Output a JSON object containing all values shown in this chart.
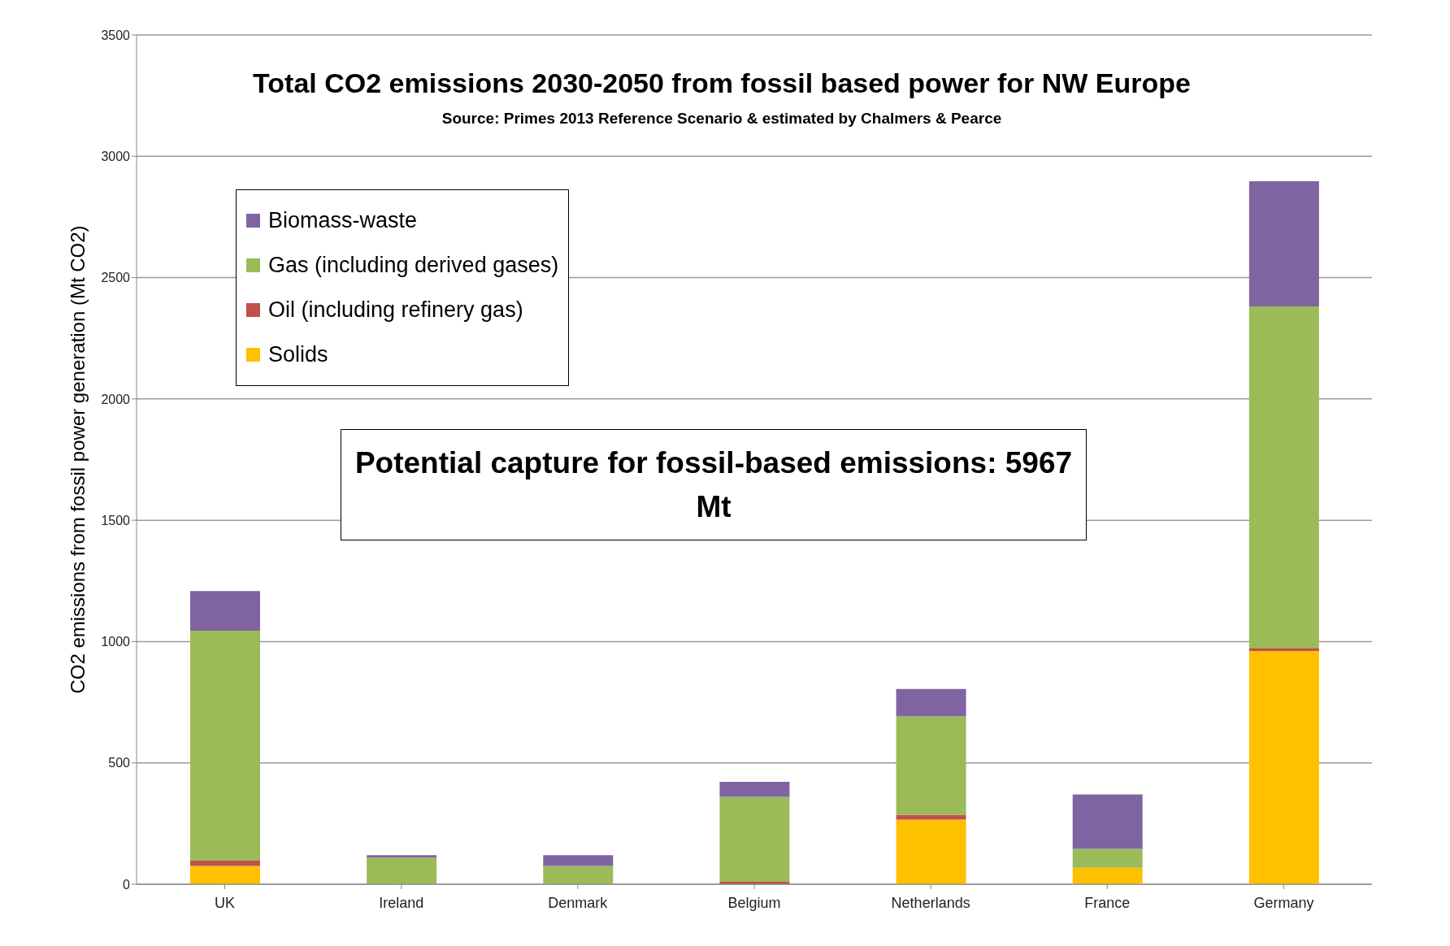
{
  "chart_data": {
    "type": "bar",
    "title": "Total CO2 emissions 2030-2050 from fossil based power for NW Europe",
    "ylabel": "CO2 emissions from fossil power generation (Mt CO2)",
    "annotations": [
      "Source: Primes 2013  Reference Scenario & estimated by Chalmers & Pearce",
      "Potential capture for fossil-based emissions: 5967 Mt"
    ],
    "categories": [
      "UK",
      "Ireland",
      "Denmark",
      "Belgium",
      "Netherlands",
      "France",
      "Germany"
    ],
    "stacked": true,
    "series": [
      {
        "name": "Solids",
        "color": "#ffc000",
        "values": [
          75,
          0,
          0,
          0,
          266,
          68,
          961
        ]
      },
      {
        "name": "Oil (including refinery gas)",
        "color": "#c0504d",
        "values": [
          22,
          0,
          0,
          10,
          20,
          0,
          13
        ]
      },
      {
        "name": "Gas (including derived gases)",
        "color": "#9bbb59",
        "values": [
          948,
          110,
          75,
          350,
          406,
          78,
          1407
        ]
      },
      {
        "name": "Biomass-waste",
        "color": "#8064a2",
        "values": [
          163,
          10,
          45,
          62,
          113,
          224,
          516
        ]
      }
    ],
    "ylim": [
      0,
      3500
    ],
    "yticks": [
      0,
      500,
      1000,
      1500,
      2000,
      2500,
      3000,
      3500
    ],
    "grid": "y",
    "legend": "top left"
  }
}
